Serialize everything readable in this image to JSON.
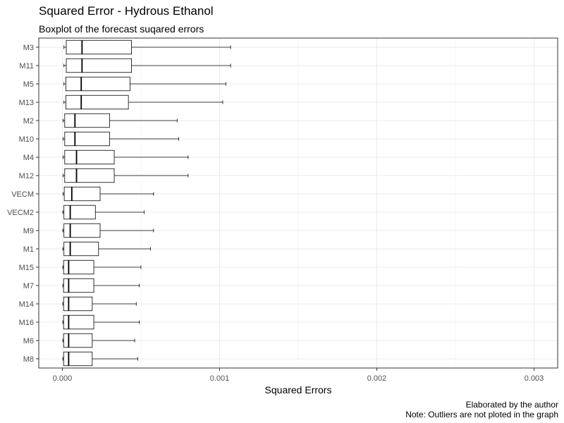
{
  "chart_data": {
    "type": "boxplot",
    "title": "Squared Error - Hydrous Ethanol",
    "subtitle": "Boxplot of the forecast suqared errors",
    "xlabel": "Squared Errors",
    "ylabel": "",
    "xlim": [
      -0.00015,
      0.00315
    ],
    "x_ticks": [
      0.0,
      0.001,
      0.002,
      0.003
    ],
    "x_tick_labels": [
      "0.000",
      "0.001",
      "0.002",
      "0.003"
    ],
    "grid": true,
    "caption": [
      "Elaborated by the author",
      "Note: Outliers are not ploted in the graph"
    ],
    "categories": [
      "M3",
      "M11",
      "M5",
      "M13",
      "M2",
      "M10",
      "M4",
      "M12",
      "VECM",
      "VECM2",
      "M9",
      "M1",
      "M15",
      "M7",
      "M14",
      "M16",
      "M6",
      "M8"
    ],
    "boxes": [
      {
        "label": "M3",
        "min": 1e-05,
        "q1": 2.5e-05,
        "median": 0.000125,
        "q3": 0.00044,
        "max": 0.00107
      },
      {
        "label": "M11",
        "min": 1e-05,
        "q1": 2.5e-05,
        "median": 0.000125,
        "q3": 0.00044,
        "max": 0.00107
      },
      {
        "label": "M5",
        "min": 1e-05,
        "q1": 2.2e-05,
        "median": 0.00012,
        "q3": 0.00043,
        "max": 0.00104
      },
      {
        "label": "M13",
        "min": 1e-05,
        "q1": 2.2e-05,
        "median": 0.00012,
        "q3": 0.00042,
        "max": 0.00102
      },
      {
        "label": "M2",
        "min": 5e-06,
        "q1": 1.5e-05,
        "median": 8e-05,
        "q3": 0.0003,
        "max": 0.00073
      },
      {
        "label": "M10",
        "min": 5e-06,
        "q1": 1.5e-05,
        "median": 8e-05,
        "q3": 0.0003,
        "max": 0.00074
      },
      {
        "label": "M4",
        "min": 5e-06,
        "q1": 1.5e-05,
        "median": 9e-05,
        "q3": 0.00033,
        "max": 0.0008
      },
      {
        "label": "M12",
        "min": 5e-06,
        "q1": 1.5e-05,
        "median": 9e-05,
        "q3": 0.00033,
        "max": 0.0008
      },
      {
        "label": "VECM",
        "min": 5e-06,
        "q1": 1.2e-05,
        "median": 6e-05,
        "q3": 0.00024,
        "max": 0.00058
      },
      {
        "label": "VECM2",
        "min": 3e-06,
        "q1": 1e-05,
        "median": 5e-05,
        "q3": 0.00021,
        "max": 0.00052
      },
      {
        "label": "M9",
        "min": 3e-06,
        "q1": 1e-05,
        "median": 5e-05,
        "q3": 0.00024,
        "max": 0.00058
      },
      {
        "label": "M1",
        "min": 3e-06,
        "q1": 1e-05,
        "median": 5e-05,
        "q3": 0.00023,
        "max": 0.00056
      },
      {
        "label": "M15",
        "min": 3e-06,
        "q1": 8e-06,
        "median": 4e-05,
        "q3": 0.0002,
        "max": 0.0005
      },
      {
        "label": "M7",
        "min": 3e-06,
        "q1": 8e-06,
        "median": 4e-05,
        "q3": 0.0002,
        "max": 0.00049
      },
      {
        "label": "M14",
        "min": 3e-06,
        "q1": 8e-06,
        "median": 4e-05,
        "q3": 0.00019,
        "max": 0.00047
      },
      {
        "label": "M16",
        "min": 3e-06,
        "q1": 8e-06,
        "median": 4e-05,
        "q3": 0.0002,
        "max": 0.00049
      },
      {
        "label": "M6",
        "min": 3e-06,
        "q1": 8e-06,
        "median": 4e-05,
        "q3": 0.00019,
        "max": 0.00046
      },
      {
        "label": "M8",
        "min": 3e-06,
        "q1": 8e-06,
        "median": 4e-05,
        "q3": 0.00019,
        "max": 0.00048
      }
    ]
  }
}
